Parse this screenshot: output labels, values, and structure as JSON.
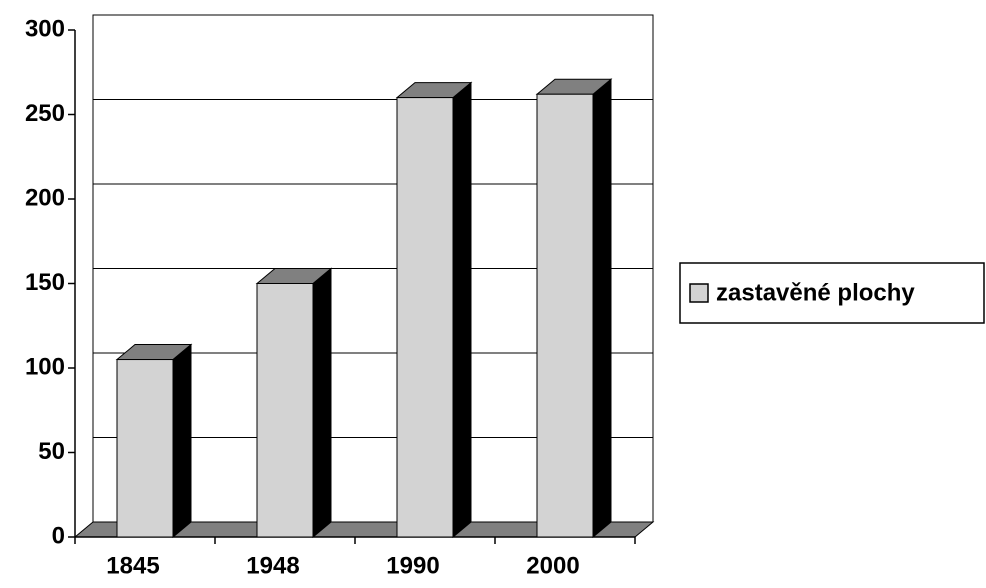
{
  "chart_data": {
    "type": "bar",
    "categories": [
      "1845",
      "1948",
      "1990",
      "2000"
    ],
    "series": [
      {
        "name": "zastavěné plochy",
        "color": "#d3d3d3",
        "values": [
          105,
          150,
          260,
          262
        ]
      }
    ],
    "ylim": [
      0,
      300
    ],
    "yticks": [
      0,
      50,
      100,
      150,
      200,
      250,
      300
    ],
    "grid": true,
    "legend": "right"
  }
}
